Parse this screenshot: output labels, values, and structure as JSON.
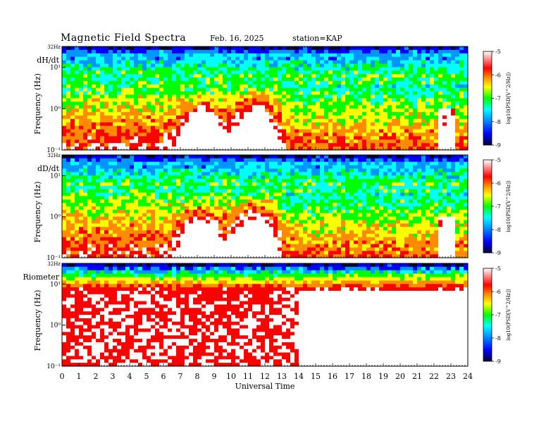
{
  "header": {
    "title": "Magnetic  Field  Spectra",
    "date": "Feb. 16, 2025",
    "station": "station=KAP"
  },
  "colors": {
    "scale": [
      "#00003a",
      "#0000ff",
      "#0096ff",
      "#00ffff",
      "#00ff00",
      "#ffff00",
      "#ff8c00",
      "#ff0000",
      "#ffffff"
    ]
  },
  "chart_data": {
    "type": "heatmap",
    "xlabel": "Universal Time",
    "x_ticks": [
      "0",
      "1",
      "2",
      "3",
      "4",
      "5",
      "6",
      "7",
      "8",
      "9",
      "10",
      "11",
      "12",
      "13",
      "14",
      "15",
      "16",
      "17",
      "18",
      "19",
      "20",
      "21",
      "22",
      "23",
      "24"
    ],
    "xlim": [
      0,
      24
    ],
    "y_scale": "log",
    "colorbar": {
      "label": "log10(PSD[V^2/Hz])",
      "ticks": [
        "-5",
        "-6",
        "-7",
        "-8",
        "-9"
      ],
      "range": [
        -9,
        -5
      ]
    },
    "panels": [
      {
        "name": "dH/dt",
        "ylabel": "Frequency (Hz)",
        "y_tick_labels": [
          "32Hz",
          "10¹",
          "10⁰",
          "10⁻¹"
        ],
        "ylim": [
          0.1,
          32
        ]
      },
      {
        "name": "dD/dt",
        "ylabel": "Frequency (Hz)",
        "y_tick_labels": [
          "32Hz",
          "10¹",
          "10⁰",
          "10⁻¹"
        ],
        "ylim": [
          0.1,
          32
        ]
      },
      {
        "name": "Riometer",
        "ylabel": "Frequency (Hz)",
        "y_tick_labels": [
          "32Hz",
          "10¹",
          "10⁰",
          "10⁻¹"
        ],
        "ylim": [
          0.1,
          32
        ]
      }
    ]
  }
}
